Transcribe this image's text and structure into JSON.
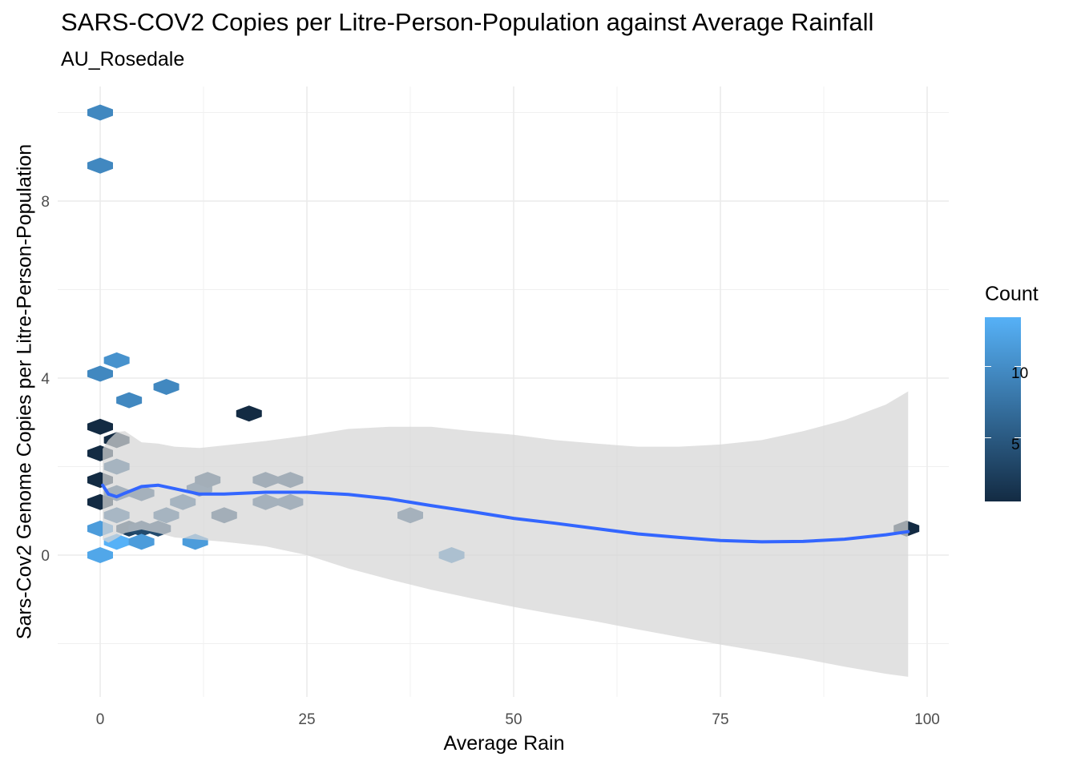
{
  "chart_data": {
    "type": "hexbin",
    "title": "SARS-COV2 Copies per Litre-Person-Population against Average Rainfall",
    "subtitle": "AU_Rosedale",
    "xlabel": "Average Rain",
    "ylabel": "Sars-Cov2 Genome Copies per Litre-Person-Population",
    "xlim": [
      -3,
      102
    ],
    "ylim": [
      -3.2,
      10.5
    ],
    "x_ticks": [
      0,
      25,
      50,
      75,
      100
    ],
    "y_ticks": [
      0,
      4,
      8
    ],
    "grid": true,
    "legend": {
      "title": "Count",
      "position": "right",
      "ticks": [
        5,
        10
      ],
      "low_color": "#132B43",
      "high_color": "#56B1F7",
      "count_range": [
        1,
        14
      ]
    },
    "hexagons": [
      {
        "x": 0,
        "y": 10.0,
        "count": 10
      },
      {
        "x": 0,
        "y": 8.8,
        "count": 10
      },
      {
        "x": 0,
        "y": 4.1,
        "count": 10
      },
      {
        "x": 2,
        "y": 4.4,
        "count": 11
      },
      {
        "x": 3.5,
        "y": 3.5,
        "count": 10
      },
      {
        "x": 8,
        "y": 3.8,
        "count": 10
      },
      {
        "x": 18,
        "y": 3.2,
        "count": 1
      },
      {
        "x": 0,
        "y": 2.9,
        "count": 1
      },
      {
        "x": 2,
        "y": 2.6,
        "count": 1
      },
      {
        "x": 0,
        "y": 2.3,
        "count": 1
      },
      {
        "x": 2,
        "y": 2.0,
        "count": 6
      },
      {
        "x": 0,
        "y": 1.7,
        "count": 1
      },
      {
        "x": 2,
        "y": 1.4,
        "count": 5
      },
      {
        "x": 5,
        "y": 1.4,
        "count": 5
      },
      {
        "x": 0,
        "y": 1.2,
        "count": 1
      },
      {
        "x": 2,
        "y": 0.9,
        "count": 7
      },
      {
        "x": 3.5,
        "y": 0.6,
        "count": 3
      },
      {
        "x": 5,
        "y": 0.6,
        "count": 4
      },
      {
        "x": 7,
        "y": 0.6,
        "count": 4
      },
      {
        "x": 8,
        "y": 0.9,
        "count": 6
      },
      {
        "x": 10,
        "y": 1.2,
        "count": 6
      },
      {
        "x": 12,
        "y": 1.5,
        "count": 5
      },
      {
        "x": 13,
        "y": 1.7,
        "count": 4
      },
      {
        "x": 15,
        "y": 0.9,
        "count": 4
      },
      {
        "x": 20,
        "y": 1.7,
        "count": 4
      },
      {
        "x": 20,
        "y": 1.2,
        "count": 5
      },
      {
        "x": 23,
        "y": 1.7,
        "count": 4
      },
      {
        "x": 23,
        "y": 1.2,
        "count": 5
      },
      {
        "x": 0,
        "y": 0.6,
        "count": 12
      },
      {
        "x": 2,
        "y": 0.3,
        "count": 14
      },
      {
        "x": 5,
        "y": 0.3,
        "count": 12
      },
      {
        "x": 0,
        "y": 0.0,
        "count": 13
      },
      {
        "x": 11.5,
        "y": 0.3,
        "count": 12
      },
      {
        "x": 37.5,
        "y": 0.9,
        "count": 5
      },
      {
        "x": 42.5,
        "y": 0.0,
        "count": 10
      },
      {
        "x": 97.5,
        "y": 0.6,
        "count": 1
      }
    ],
    "smooth": {
      "color": "#3366FF",
      "band_color": "#d6d6d6",
      "x": [
        0.3,
        1,
        2,
        3,
        5,
        7,
        9,
        12,
        15,
        20,
        25,
        30,
        35,
        40,
        45,
        50,
        55,
        60,
        65,
        70,
        75,
        80,
        85,
        90,
        95,
        97.7
      ],
      "y": [
        1.58,
        1.38,
        1.32,
        1.4,
        1.55,
        1.58,
        1.5,
        1.38,
        1.38,
        1.42,
        1.42,
        1.37,
        1.27,
        1.12,
        0.98,
        0.83,
        0.72,
        0.6,
        0.48,
        0.4,
        0.33,
        0.3,
        0.31,
        0.36,
        0.46,
        0.53
      ],
      "lower": [
        0.35,
        0.28,
        0.38,
        0.5,
        0.58,
        0.5,
        0.4,
        0.35,
        0.3,
        0.2,
        0.0,
        -0.3,
        -0.55,
        -0.78,
        -0.98,
        -1.17,
        -1.34,
        -1.5,
        -1.68,
        -1.85,
        -2.02,
        -2.18,
        -2.34,
        -2.52,
        -2.68,
        -2.75
      ],
      "upper": [
        2.4,
        2.6,
        2.78,
        2.8,
        2.55,
        2.52,
        2.45,
        2.42,
        2.48,
        2.58,
        2.7,
        2.85,
        2.9,
        2.9,
        2.8,
        2.72,
        2.6,
        2.52,
        2.45,
        2.45,
        2.5,
        2.6,
        2.8,
        3.05,
        3.4,
        3.7
      ]
    }
  }
}
